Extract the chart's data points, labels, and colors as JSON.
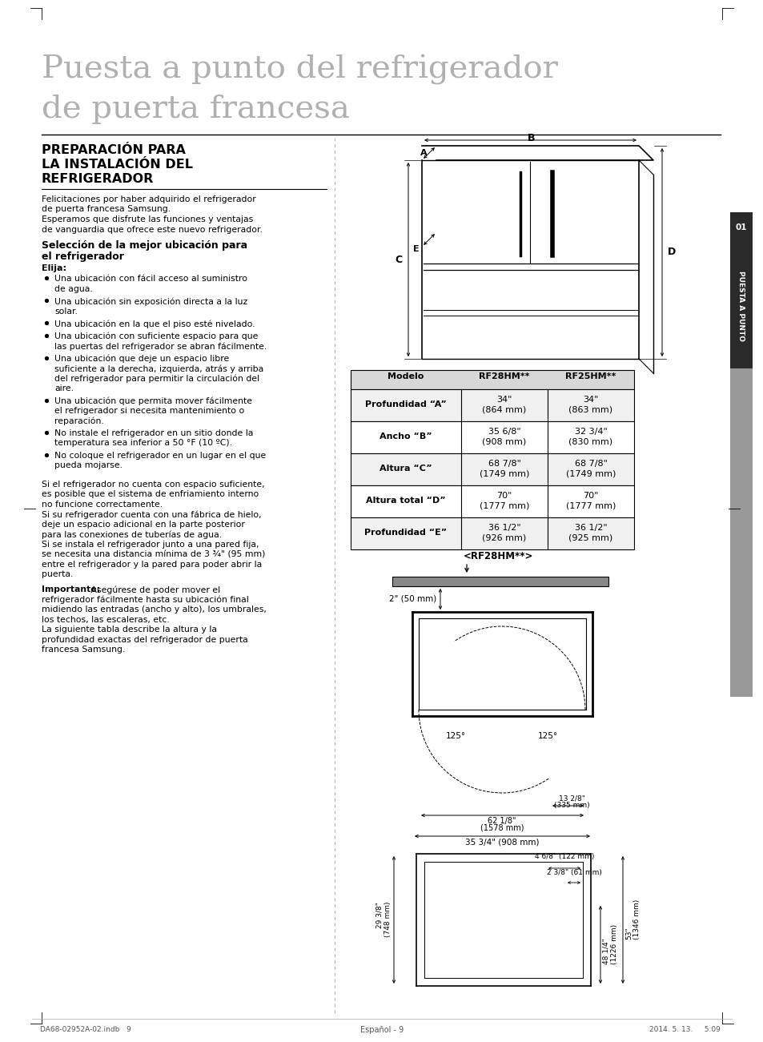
{
  "title_line1": "Puesta a punto del refrigerador",
  "title_line2": "de puerta francesa",
  "section_title_lines": [
    "PREPARACIÓN PARA",
    "LA INSTALACIÓN DEL",
    "REFRIGERADOR"
  ],
  "intro_lines": [
    "Felicitaciones por haber adquirido el refrigerador",
    "de puerta francesa Samsung.",
    "Esperamos que disfrute las funciones y ventajas",
    "de vanguardia que ofrece este nuevo refrigerador."
  ],
  "subsection_line1": "Selección de la mejor ubicación para",
  "subsection_line2": "el refrigerador",
  "elija_label": "Elija:",
  "bullet_points": [
    [
      "Una ubicación con fácil acceso al suministro",
      "de agua."
    ],
    [
      "Una ubicación sin exposición directa a la luz",
      "solar."
    ],
    [
      "Una ubicación en la que el piso esté nivelado."
    ],
    [
      "Una ubicación con suficiente espacio para que",
      "las puertas del refrigerador se abran fácilmente."
    ],
    [
      "Una ubicación que deje un espacio libre",
      "suficiente a la derecha, izquierda, atrás y arriba",
      "del refrigerador para permitir la circulación del",
      "aire."
    ],
    [
      "Una ubicación que permita mover fácilmente",
      "el refrigerador si necesita mantenimiento o",
      "reparación."
    ],
    [
      "No instale el refrigerador en un sitio donde la",
      "temperatura sea inferior a 50 °F (10 ºC)."
    ],
    [
      "No coloque el refrigerador en un lugar en el que",
      "pueda mojarse."
    ]
  ],
  "para2_lines": [
    "Si el refrigerador no cuenta con espacio suficiente,",
    "es posible que el sistema de enfriamiento interno",
    "no funcione correctamente.",
    "Si su refrigerador cuenta con una fábrica de hielo,",
    "deje un espacio adicional en la parte posterior",
    "para las conexiones de tuberías de agua.",
    "Si se instala el refrigerador junto a una pared fija,",
    "se necesita una distancia mínima de 3 ¾\" (95 mm)",
    "entre el refrigerador y la pared para poder abrir la",
    "puerta."
  ],
  "importante_bold": "Importante:",
  "importante_rest": " Asegúrese de poder mover el",
  "para3_lines": [
    "refrigerador fácilmente hasta su ubicación final",
    "midiendo las entradas (ancho y alto), los umbrales,",
    "los techos, las escaleras, etc.",
    "La siguiente tabla describe la altura y la",
    "profundidad exactas del refrigerador de puerta",
    "francesa Samsung."
  ],
  "table_headers": [
    "Modelo",
    "RF28HM**",
    "RF25HM**"
  ],
  "table_rows": [
    [
      "Profundidad “A”",
      "34\"\n(864 mm)",
      "34\"\n(863 mm)"
    ],
    [
      "Ancho “B”",
      "35 6/8\"\n(908 mm)",
      "32 3/4\"\n(830 mm)"
    ],
    [
      "Altura “C”",
      "68 7/8\"\n(1749 mm)",
      "68 7/8\"\n(1749 mm)"
    ],
    [
      "Altura total “D”",
      "70\"\n(1777 mm)",
      "70\"\n(1777 mm)"
    ],
    [
      "Profundidad “E”",
      "36 1/2\"\n(926 mm)",
      "36 1/2\"\n(925 mm)"
    ]
  ],
  "diagram_label": "<RF28HM**>",
  "footer_left": "DA68-02952A-02.indb   9",
  "footer_center": "Español - 9",
  "footer_right": "2014. 5. 13.     5:09",
  "bg_color": "#ffffff",
  "sidebar_dark": "#2a2a2a",
  "sidebar_gray": "#999999"
}
